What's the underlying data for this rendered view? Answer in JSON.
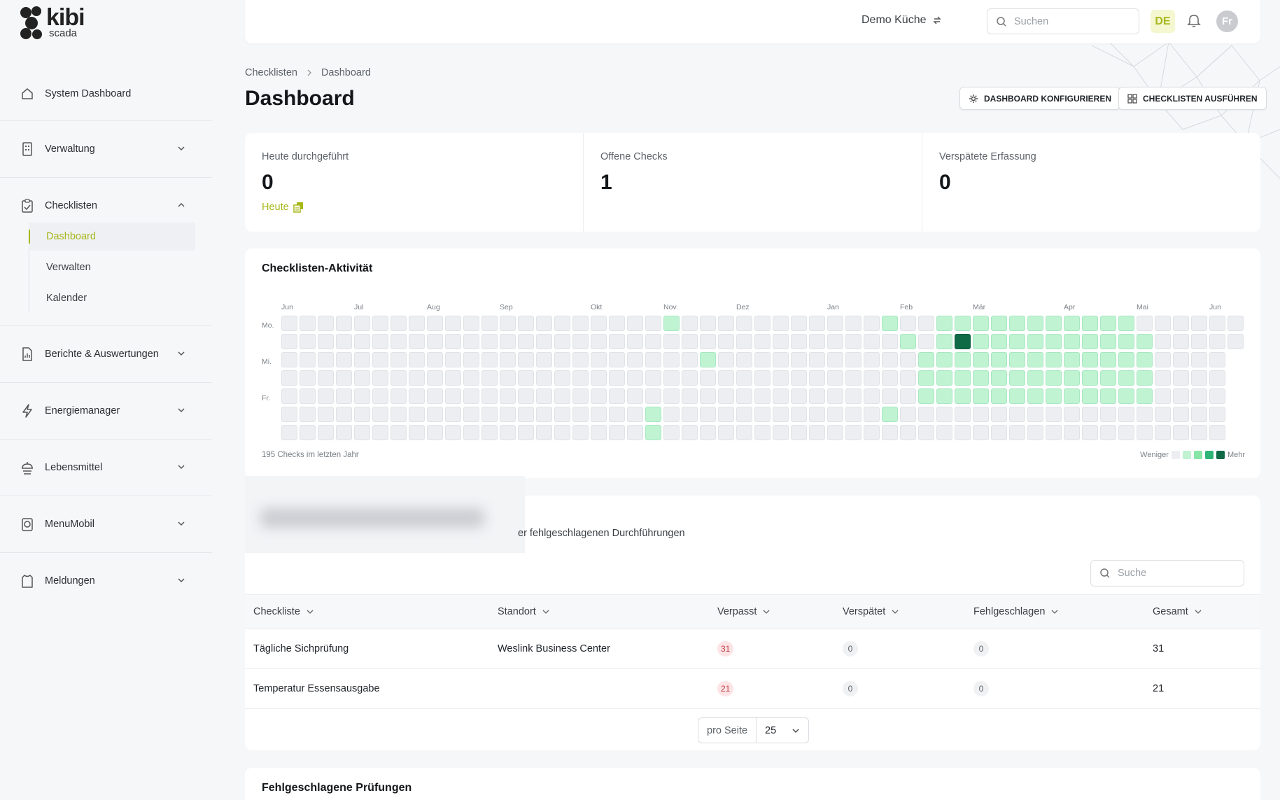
{
  "brand": {
    "name": "kibi",
    "sub": "scada"
  },
  "sidebar": {
    "items": [
      {
        "label": "System Dashboard",
        "icon": "home-icon"
      },
      {
        "label": "Verwaltung",
        "icon": "building-icon"
      },
      {
        "label": "Checklisten",
        "icon": "clipboard-icon"
      },
      {
        "label": "Berichte & Auswertungen",
        "icon": "report-icon"
      },
      {
        "label": "Energiemanager",
        "icon": "bolt-icon"
      },
      {
        "label": "Lebensmittel",
        "icon": "food-icon"
      },
      {
        "label": "MenuMobil",
        "icon": "device-icon"
      },
      {
        "label": "Meldungen",
        "icon": "shirt-icon"
      }
    ],
    "sub_items": [
      {
        "label": "Dashboard",
        "active": true
      },
      {
        "label": "Verwalten",
        "active": false
      },
      {
        "label": "Kalender",
        "active": false
      }
    ]
  },
  "topbar": {
    "location": "Demo Küche",
    "search_placeholder": "Suchen",
    "language": "DE",
    "avatar_initials": "Fr"
  },
  "breadcrumb": {
    "first": "Checklisten",
    "second": "Dashboard"
  },
  "page_title": "Dashboard",
  "actions": {
    "configure": "DASHBOARD KONFIGURIEREN",
    "run": "CHECKLISTEN AUSFÜHREN"
  },
  "stats": [
    {
      "label": "Heute durchgeführt",
      "value": "0",
      "link": "Heute"
    },
    {
      "label": "Offene Checks",
      "value": "1"
    },
    {
      "label": "Verspätete Erfassung",
      "value": "0"
    }
  ],
  "activity": {
    "title": "Checklisten-Aktivität",
    "months": [
      "Jun",
      "Jul",
      "Aug",
      "Sep",
      "Okt",
      "Nov",
      "Dez",
      "Jan",
      "Feb",
      "Mär",
      "Apr",
      "Mai",
      "Jun"
    ],
    "days": [
      "Mo.",
      "Mi.",
      "Fr."
    ],
    "summary": "195 Checks im letzten Jahr",
    "legend_less": "Weniger",
    "legend_more": "Mehr",
    "legend_colors": [
      "#eceef1",
      "#bff3d2",
      "#86e5a7",
      "#2fb477",
      "#0f6a46"
    ],
    "levels": [
      [
        0,
        0,
        0,
        0,
        0,
        0,
        0,
        0,
        0,
        0,
        0,
        0,
        0,
        0,
        0,
        0,
        0,
        0,
        0,
        0,
        0,
        1,
        0,
        0,
        0,
        0,
        0,
        0,
        0,
        0,
        0,
        0,
        0,
        1,
        0,
        0,
        1,
        1,
        1,
        1,
        1,
        1,
        1,
        1,
        1,
        1,
        1,
        0,
        0,
        0,
        0,
        0,
        0
      ],
      [
        0,
        0,
        0,
        0,
        0,
        0,
        0,
        0,
        0,
        0,
        0,
        0,
        0,
        0,
        0,
        0,
        0,
        0,
        0,
        0,
        0,
        0,
        0,
        0,
        0,
        0,
        0,
        0,
        0,
        0,
        0,
        0,
        0,
        0,
        1,
        0,
        1,
        4,
        1,
        1,
        1,
        1,
        1,
        1,
        1,
        1,
        1,
        1,
        0,
        0,
        0,
        0,
        0
      ],
      [
        0,
        0,
        0,
        0,
        0,
        0,
        0,
        0,
        0,
        0,
        0,
        0,
        0,
        0,
        0,
        0,
        0,
        0,
        0,
        0,
        0,
        0,
        0,
        1,
        0,
        0,
        0,
        0,
        0,
        0,
        0,
        0,
        0,
        0,
        0,
        1,
        1,
        1,
        1,
        1,
        1,
        1,
        1,
        1,
        1,
        1,
        1,
        1,
        0,
        0,
        0,
        0,
        0
      ],
      [
        0,
        0,
        0,
        0,
        0,
        0,
        0,
        0,
        0,
        0,
        0,
        0,
        0,
        0,
        0,
        0,
        0,
        0,
        0,
        0,
        0,
        0,
        0,
        0,
        0,
        0,
        0,
        0,
        0,
        0,
        0,
        0,
        0,
        0,
        0,
        1,
        1,
        1,
        1,
        1,
        1,
        1,
        1,
        1,
        1,
        1,
        1,
        1,
        0,
        0,
        0,
        0,
        0
      ],
      [
        0,
        0,
        0,
        0,
        0,
        0,
        0,
        0,
        0,
        0,
        0,
        0,
        0,
        0,
        0,
        0,
        0,
        0,
        0,
        0,
        0,
        0,
        0,
        0,
        0,
        0,
        0,
        0,
        0,
        0,
        0,
        0,
        0,
        0,
        0,
        1,
        1,
        1,
        1,
        1,
        1,
        1,
        1,
        1,
        1,
        1,
        1,
        1,
        0,
        0,
        0,
        0,
        0
      ],
      [
        0,
        0,
        0,
        0,
        0,
        0,
        0,
        0,
        0,
        0,
        0,
        0,
        0,
        0,
        0,
        0,
        0,
        0,
        0,
        0,
        1,
        0,
        0,
        0,
        0,
        0,
        0,
        0,
        0,
        0,
        0,
        0,
        0,
        1,
        0,
        0,
        0,
        0,
        0,
        0,
        0,
        0,
        0,
        0,
        0,
        0,
        0,
        0,
        0,
        0,
        0,
        0,
        0
      ],
      [
        0,
        0,
        0,
        0,
        0,
        0,
        0,
        0,
        0,
        0,
        0,
        0,
        0,
        0,
        0,
        0,
        0,
        0,
        0,
        0,
        1,
        0,
        0,
        0,
        0,
        0,
        0,
        0,
        0,
        0,
        0,
        0,
        0,
        0,
        0,
        0,
        0,
        0,
        0,
        0,
        0,
        0,
        0,
        0,
        0,
        0,
        0,
        0,
        0,
        0,
        0,
        0,
        0
      ]
    ]
  },
  "table": {
    "subtitle_visible": "er fehlgeschlagenen Durchführungen",
    "search_placeholder": "Suche",
    "columns": [
      "Checkliste",
      "Standort",
      "Verpasst",
      "Verspätet",
      "Fehlgeschlagen",
      "Gesamt"
    ],
    "rows": [
      {
        "checkliste": "Tägliche Sichprüfung",
        "standort": "Weslink Business Center",
        "verpasst": "31",
        "verspaetet": "0",
        "fehlgeschlagen": "0",
        "gesamt": "31"
      },
      {
        "checkliste": "Temperatur Essensausgabe",
        "standort": "",
        "verpasst": "21",
        "verspaetet": "0",
        "fehlgeschlagen": "0",
        "gesamt": "21"
      }
    ],
    "per_page_label": "pro Seite",
    "per_page_value": "25"
  },
  "failed_title": "Fehlgeschlagene Prüfungen",
  "colors": {
    "accent": "#a8b81c",
    "danger": "#c23b45"
  }
}
